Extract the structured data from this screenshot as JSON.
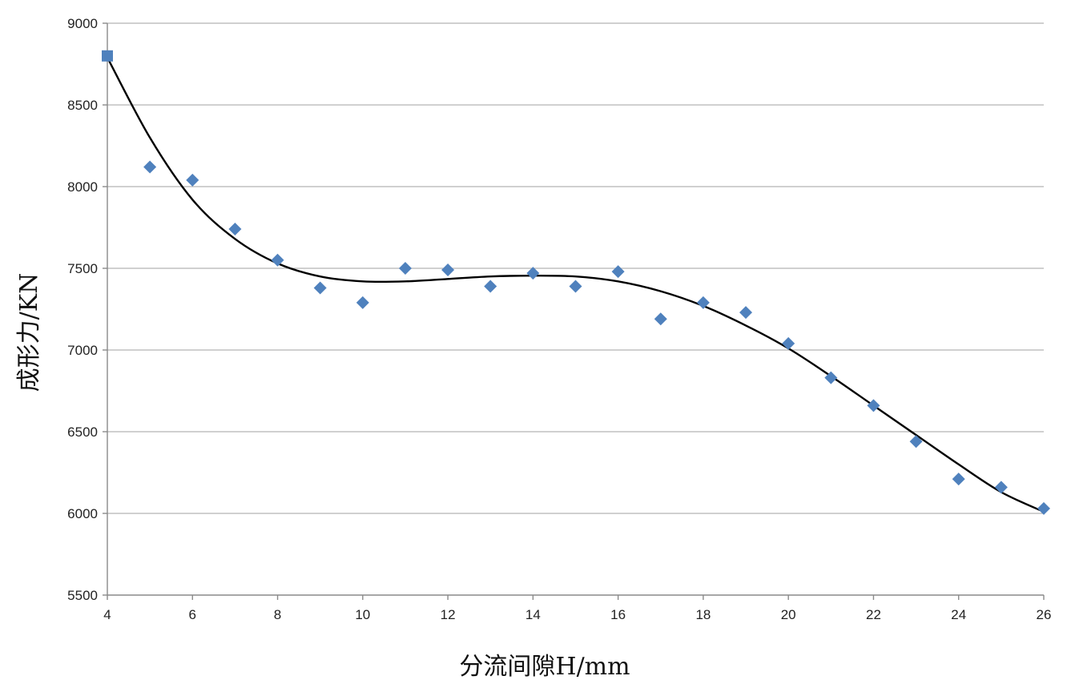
{
  "chart_data": {
    "type": "scatter",
    "title": "",
    "xlabel": "分流间隙H/mm",
    "ylabel": "成形力/KN",
    "xlim": [
      4,
      26
    ],
    "ylim": [
      5500,
      9000
    ],
    "x_ticks": [
      4,
      6,
      8,
      10,
      12,
      14,
      16,
      18,
      20,
      22,
      24,
      26
    ],
    "y_ticks": [
      5500,
      6000,
      6500,
      7000,
      7500,
      8000,
      8500,
      9000
    ],
    "x_tick_labels": [
      "4",
      "6",
      "8",
      "10",
      "12",
      "14",
      "16",
      "18",
      "20",
      "22",
      "24",
      "26"
    ],
    "y_tick_labels": [
      "5500",
      "6000",
      "6500",
      "7000",
      "7500",
      "8000",
      "8500",
      "9000"
    ],
    "grid": {
      "horizontal": true,
      "vertical": false
    },
    "legend": "none",
    "series": [
      {
        "kind": "scatter",
        "marker": "diamond",
        "color": "#4f81bd",
        "x": [
          4,
          5,
          6,
          7,
          8,
          9,
          10,
          11,
          12,
          13,
          14,
          15,
          16,
          17,
          18,
          19,
          20,
          21,
          22,
          23,
          24,
          25,
          26
        ],
        "y": [
          8800,
          8120,
          8040,
          7740,
          7550,
          7380,
          7290,
          7500,
          7490,
          7390,
          7470,
          7390,
          7480,
          7190,
          7290,
          7230,
          7040,
          6830,
          6660,
          6440,
          6210,
          6160,
          6030
        ]
      },
      {
        "kind": "trendline",
        "color": "#000000",
        "x": [
          4,
          5,
          6,
          7,
          8,
          9,
          10,
          11,
          12,
          13,
          14,
          15,
          16,
          17,
          18,
          19,
          20,
          21,
          22,
          23,
          24,
          25,
          26
        ],
        "y": [
          8790,
          8300,
          7920,
          7680,
          7530,
          7450,
          7420,
          7420,
          7435,
          7450,
          7455,
          7450,
          7420,
          7360,
          7270,
          7150,
          7010,
          6840,
          6660,
          6480,
          6300,
          6130,
          6010
        ]
      }
    ]
  }
}
